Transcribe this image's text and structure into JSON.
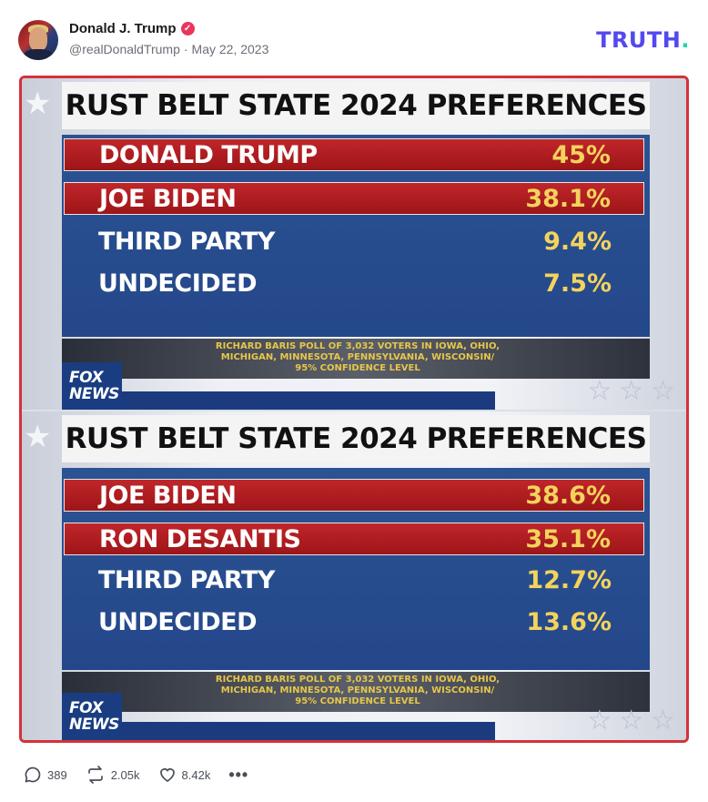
{
  "post": {
    "display_name": "Donald J. Trump",
    "handle": "@realDonaldTrump",
    "separator": "·",
    "date": "May 22, 2023",
    "brand_logo": "TRUTH",
    "brand_dot": ".",
    "verified_icon": "verified-check-icon",
    "accent_color": "#5448ee",
    "brand_dot_color": "#1ad7b3"
  },
  "media": {
    "border_color": "#d4323a",
    "panels": [
      {
        "title": "RUST BELT STATE 2024 PREFERENCES",
        "rows": [
          {
            "name": "DONALD TRUMP",
            "pct": "45%",
            "style": "red"
          },
          {
            "name": "JOE BIDEN",
            "pct": "38.1%",
            "style": "red"
          },
          {
            "name": "THIRD PARTY",
            "pct": "9.4%",
            "style": "blue"
          },
          {
            "name": "UNDECIDED",
            "pct": "7.5%",
            "style": "blue"
          }
        ],
        "source_line1": "RICHARD BARIS POLL OF 3,032 VOTERS IN IOWA, OHIO,",
        "source_line2": "MICHIGAN, MINNESOTA, PENNSYLVANIA, WISCONSIN/",
        "source_line3": "95% CONFIDENCE LEVEL",
        "network_line1": "FOX",
        "network_line2": "NEWS"
      },
      {
        "title": "RUST BELT STATE 2024 PREFERENCES",
        "rows": [
          {
            "name": "JOE BIDEN",
            "pct": "38.6%",
            "style": "red"
          },
          {
            "name": "RON DESANTIS",
            "pct": "35.1%",
            "style": "red"
          },
          {
            "name": "THIRD PARTY",
            "pct": "12.7%",
            "style": "blue"
          },
          {
            "name": "UNDECIDED",
            "pct": "13.6%",
            "style": "blue"
          }
        ],
        "source_line1": "RICHARD BARIS POLL OF 3,032 VOTERS IN IOWA, OHIO,",
        "source_line2": "MICHIGAN, MINNESOTA, PENNSYLVANIA, WISCONSIN/",
        "source_line3": "95% CONFIDENCE LEVEL",
        "network_line1": "FOX",
        "network_line2": "NEWS"
      }
    ]
  },
  "actions": {
    "reply_count": "389",
    "retruth_count": "2.05k",
    "like_count": "8.42k",
    "more_label": "•••",
    "icons": [
      "reply-icon",
      "retruth-icon",
      "like-icon",
      "more-icon"
    ]
  }
}
